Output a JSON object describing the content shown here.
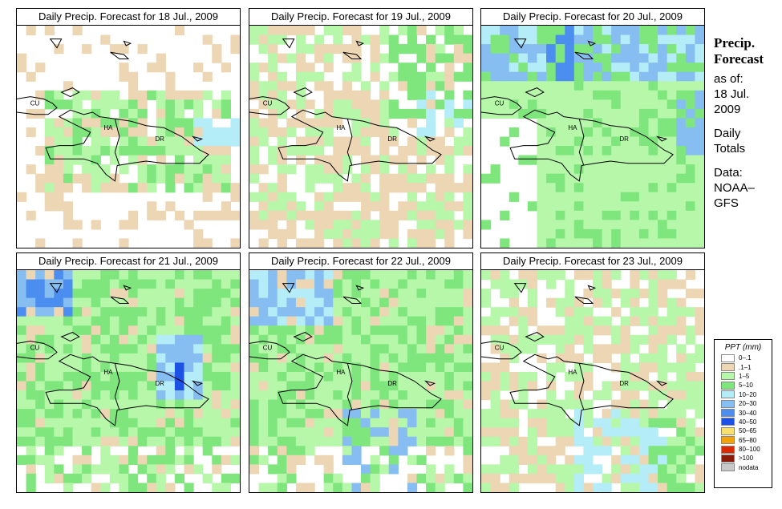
{
  "panels": [
    {
      "title": "Daily Precip. Forecast for  18 Jul., 2009",
      "profile": "p18"
    },
    {
      "title": "Daily Precip. Forecast for  19 Jul., 2009",
      "profile": "p19"
    },
    {
      "title": "Daily Precip. Forecast for  20 Jul., 2009",
      "profile": "p20"
    },
    {
      "title": "Daily Precip. Forecast for  21 Jul., 2009",
      "profile": "p21"
    },
    {
      "title": "Daily Precip. Forecast for  22 Jul., 2009",
      "profile": "p22"
    },
    {
      "title": "Daily Precip. Forecast for  23 Jul., 2009",
      "profile": "p23"
    }
  ],
  "map_labels": {
    "cuba": "CU",
    "haiti": "HA",
    "dominican_republic": "DR"
  },
  "side": {
    "heading1": "Precip.",
    "heading2": "Forecast",
    "asof": "as of:",
    "date1": "18 Jul.",
    "date2": "2009",
    "daily": "Daily",
    "totals": "Totals",
    "data_label": "Data:",
    "source1": "NOAA–",
    "source2": "GFS"
  },
  "legend": {
    "title": "PPT (mm)",
    "items": [
      {
        "label": "0–.1",
        "color": "#ffffff"
      },
      {
        "label": ".1–1",
        "color": "#ecd6b4"
      },
      {
        "label": "1–5",
        "color": "#b6f7aa"
      },
      {
        "label": "5–10",
        "color": "#7ee67c"
      },
      {
        "label": "10–20",
        "color": "#b4ecf8"
      },
      {
        "label": "20–30",
        "color": "#86bef2"
      },
      {
        "label": "30–40",
        "color": "#4b8ef0"
      },
      {
        "label": "40–50",
        "color": "#1c52e4"
      },
      {
        "label": "50–65",
        "color": "#f7e070"
      },
      {
        "label": "65–80",
        "color": "#f4a20a"
      },
      {
        "label": "80–100",
        "color": "#dc2a00"
      },
      {
        "label": ">100",
        "color": "#8a1a0a"
      },
      {
        "label": "nodata",
        "color": "#c8c8c8"
      }
    ]
  }
}
